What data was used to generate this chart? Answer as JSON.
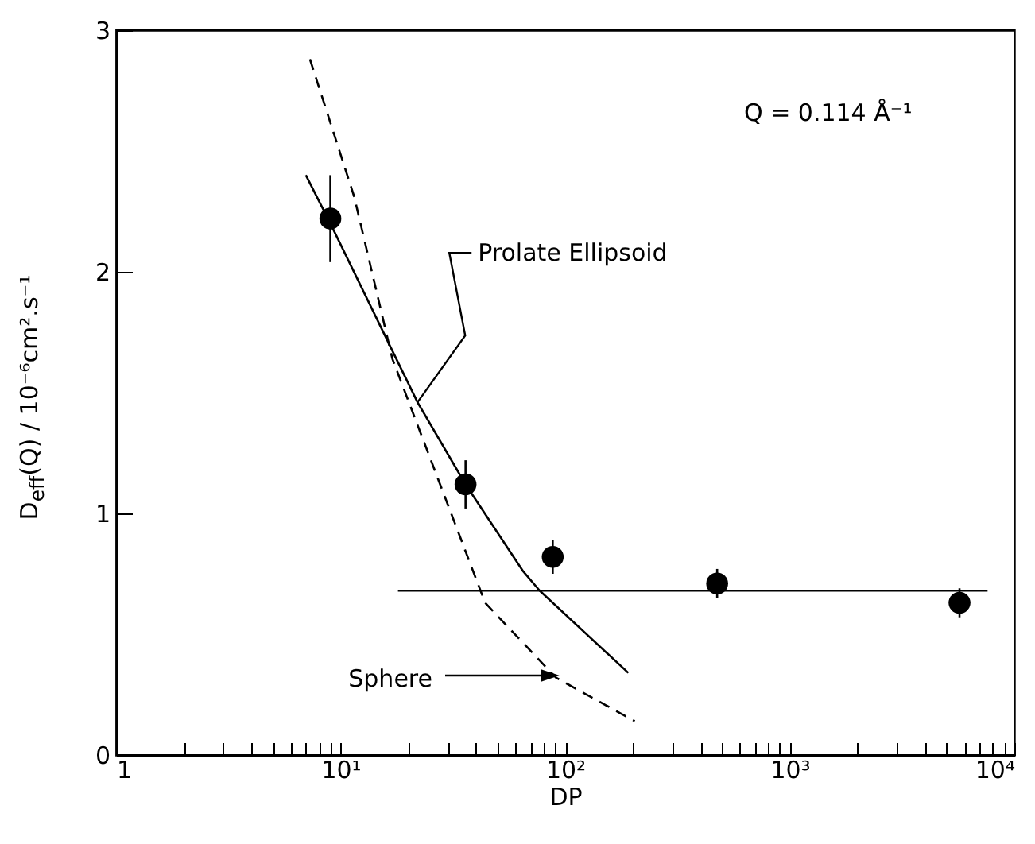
{
  "chart_data": {
    "type": "scatter",
    "xlabel": "DP",
    "ylabel": "D$_{eff}$(Q) / 10⁻⁶cm².s⁻¹",
    "log": "x",
    "xlim": [
      1,
      10000
    ],
    "xticks": [
      1,
      {
        "value": 2,
        "label": null
      },
      {
        "value": 3,
        "label": null
      },
      {
        "value": 4,
        "label": null
      },
      {
        "value": 5,
        "label": null
      },
      {
        "value": 6,
        "label": null
      },
      {
        "value": 7,
        "label": null
      },
      {
        "value": 8,
        "label": null
      },
      {
        "value": 9,
        "label": null
      },
      {
        "value": 10,
        "label": "10¹"
      },
      {
        "value": 20,
        "label": null
      },
      {
        "value": 30,
        "label": null
      },
      {
        "value": 40,
        "label": null
      },
      {
        "value": 50,
        "label": null
      },
      {
        "value": 60,
        "label": null
      },
      {
        "value": 70,
        "label": null
      },
      {
        "value": 80,
        "label": null
      },
      {
        "value": 90,
        "label": null
      },
      {
        "value": 100,
        "label": "10²"
      },
      {
        "value": 200,
        "label": null
      },
      {
        "value": 300,
        "label": null
      },
      {
        "value": 400,
        "label": null
      },
      {
        "value": 500,
        "label": null
      },
      {
        "value": 600,
        "label": null
      },
      {
        "value": 700,
        "label": null
      },
      {
        "value": 800,
        "label": null
      },
      {
        "value": 900,
        "label": null
      },
      {
        "value": 1000,
        "label": "10³"
      },
      {
        "value": 2000,
        "label": null
      },
      {
        "value": 3000,
        "label": null
      },
      {
        "value": 4000,
        "label": null
      },
      {
        "value": 5000,
        "label": null
      },
      {
        "value": 6000,
        "label": null
      },
      {
        "value": 7000,
        "label": null
      },
      {
        "value": 8000,
        "label": null
      },
      {
        "value": 9000,
        "label": null
      },
      {
        "value": 10000,
        "label": "10⁴"
      }
    ],
    "ylim": [
      0,
      3
    ],
    "yticks": [
      0,
      1,
      2,
      3
    ],
    "series": [
      {
        "marker": "circle",
        "color": "#000000",
        "x": [
          9,
          36,
          88,
          475,
          5700
        ],
        "values": [
          2.22,
          1.12,
          0.82,
          0.71,
          0.63
        ],
        "errors": [
          0.18,
          0.1,
          0.07,
          0.06,
          0.06
        ]
      },
      {
        "type": "line",
        "line_style": "solid",
        "color": "#000000",
        "x": [
          7,
          9,
          22,
          36,
          65,
          77,
          191
        ],
        "values": [
          2.4,
          2.2,
          1.46,
          1.12,
          0.76,
          0.68,
          0.34
        ]
      },
      {
        "type": "line",
        "line_style": "dashed",
        "color": "#000000",
        "x": [
          7.3,
          11.5,
          17,
          44,
          91,
          204
        ],
        "values": [
          2.88,
          2.31,
          1.64,
          0.63,
          0.32,
          0.14
        ]
      },
      {
        "type": "line",
        "line_style": "solid",
        "color": "#000000",
        "x": [
          18,
          7600
        ],
        "values": [
          0.68,
          0.68
        ]
      }
    ],
    "annotations": [
      "Q = 0.114 Å⁻¹",
      {
        "text": "Prolate Ellipsoid",
        "x": 22,
        "y": 1.46
      },
      "Sphere"
    ]
  }
}
